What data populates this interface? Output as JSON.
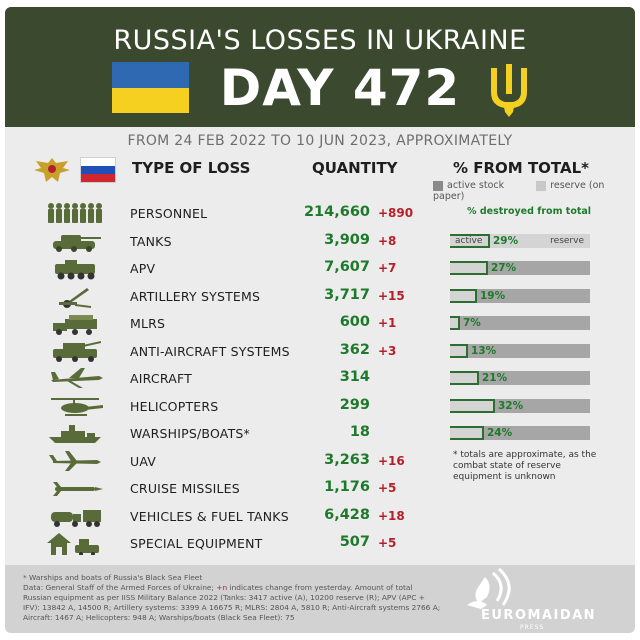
{
  "header": {
    "title": "RUSSIA'S LOSSES IN UKRAINE",
    "day_label": "DAY 472",
    "subtitle": "FROM 24 FEB 2022 TO 10 JUN 2023, APPROXIMATELY"
  },
  "columns": {
    "type": "TYPE OF LOSS",
    "quantity": "QUANTITY",
    "percent": "% FROM TOTAL*"
  },
  "legend": {
    "active": "active stock",
    "reserve": "reserve (on paper)",
    "destroyed_note": "% destroyed from total",
    "bar_active_label": "active",
    "bar_reserve_label": "reserve"
  },
  "colors": {
    "header_bg": "#3b4a2f",
    "quantity_green": "#1e7a2b",
    "change_red": "#b3202a",
    "active_grey": "#d4d4d4",
    "reserve_grey": "#a6a6a6",
    "ua_blue": "#2f69b2",
    "ua_yellow": "#f5d020",
    "trident_yellow": "#f5d020"
  },
  "rows": [
    {
      "icon": "soldiers-icon",
      "label": "PERSONNEL",
      "qty": "214,660",
      "change": "+890"
    },
    {
      "icon": "tank-icon",
      "label": "TANKS",
      "qty": "3,909",
      "change": "+8",
      "pct": "29%",
      "pct_value": 0.29
    },
    {
      "icon": "apv-icon",
      "label": "APV",
      "qty": "7,607",
      "change": "+7",
      "pct": "27%",
      "pct_value": 0.27
    },
    {
      "icon": "artillery-icon",
      "label": "ARTILLERY SYSTEMS",
      "qty": "3,717",
      "change": "+15",
      "pct": "19%",
      "pct_value": 0.19
    },
    {
      "icon": "mlrs-icon",
      "label": "MLRS",
      "qty": "600",
      "change": "+1",
      "pct": "7%",
      "pct_value": 0.07
    },
    {
      "icon": "anti-aircraft-icon",
      "label": "ANTI-AIRCRAFT SYSTEMS",
      "qty": "362",
      "change": "+3",
      "pct": "13%",
      "pct_value": 0.13
    },
    {
      "icon": "aircraft-icon",
      "label": "AIRCRAFT",
      "qty": "314",
      "change": "",
      "pct": "21%",
      "pct_value": 0.21
    },
    {
      "icon": "helicopter-icon",
      "label": "HELICOPTERS",
      "qty": "299",
      "change": "",
      "pct": "32%",
      "pct_value": 0.32
    },
    {
      "icon": "warship-icon",
      "label": "WARSHIPS/BOATS*",
      "qty": "18",
      "change": "",
      "pct": "24%",
      "pct_value": 0.24
    },
    {
      "icon": "uav-icon",
      "label": "UAV",
      "qty": "3,263",
      "change": "+16"
    },
    {
      "icon": "cruise-missile-icon",
      "label": "CRUISE MISSILES",
      "qty": "1,176",
      "change": "+5"
    },
    {
      "icon": "fuel-truck-icon",
      "label": "VEHICLES & FUEL TANKS",
      "qty": "6,428",
      "change": "+18"
    },
    {
      "icon": "special-equipment-icon",
      "label": "SPECIAL EQUIPMENT",
      "qty": "507",
      "change": "+5"
    }
  ],
  "approx_note": "* totals are approximate, as the combat state of reserve equipment is unknown",
  "footer": {
    "line1": "* Warships and boats of Russia's Black Sea Fleet",
    "line2_a": "Data: General Staff of the Armed Forces of Ukraine; ",
    "line2_red": "+n",
    "line2_b": " indicates change from yesterday. Amount of total Russian equipment as per IISS Military Balance 2022 (Tanks: 3417 active (A), 10200 reserve (R); APV (APC + IFV): 13842 A, 14500 R; Artillery systems: 3399 A 16675 R; MLRS: 2804 A, 5810 R; Anti-Aircraft systems 2766 A; Aircraft: 1467 A; Helicopters: 948 A; Warships/boats (Black Sea Fleet): 75",
    "logo_name": "EUROMAIDAN",
    "logo_press": "PRESS"
  }
}
